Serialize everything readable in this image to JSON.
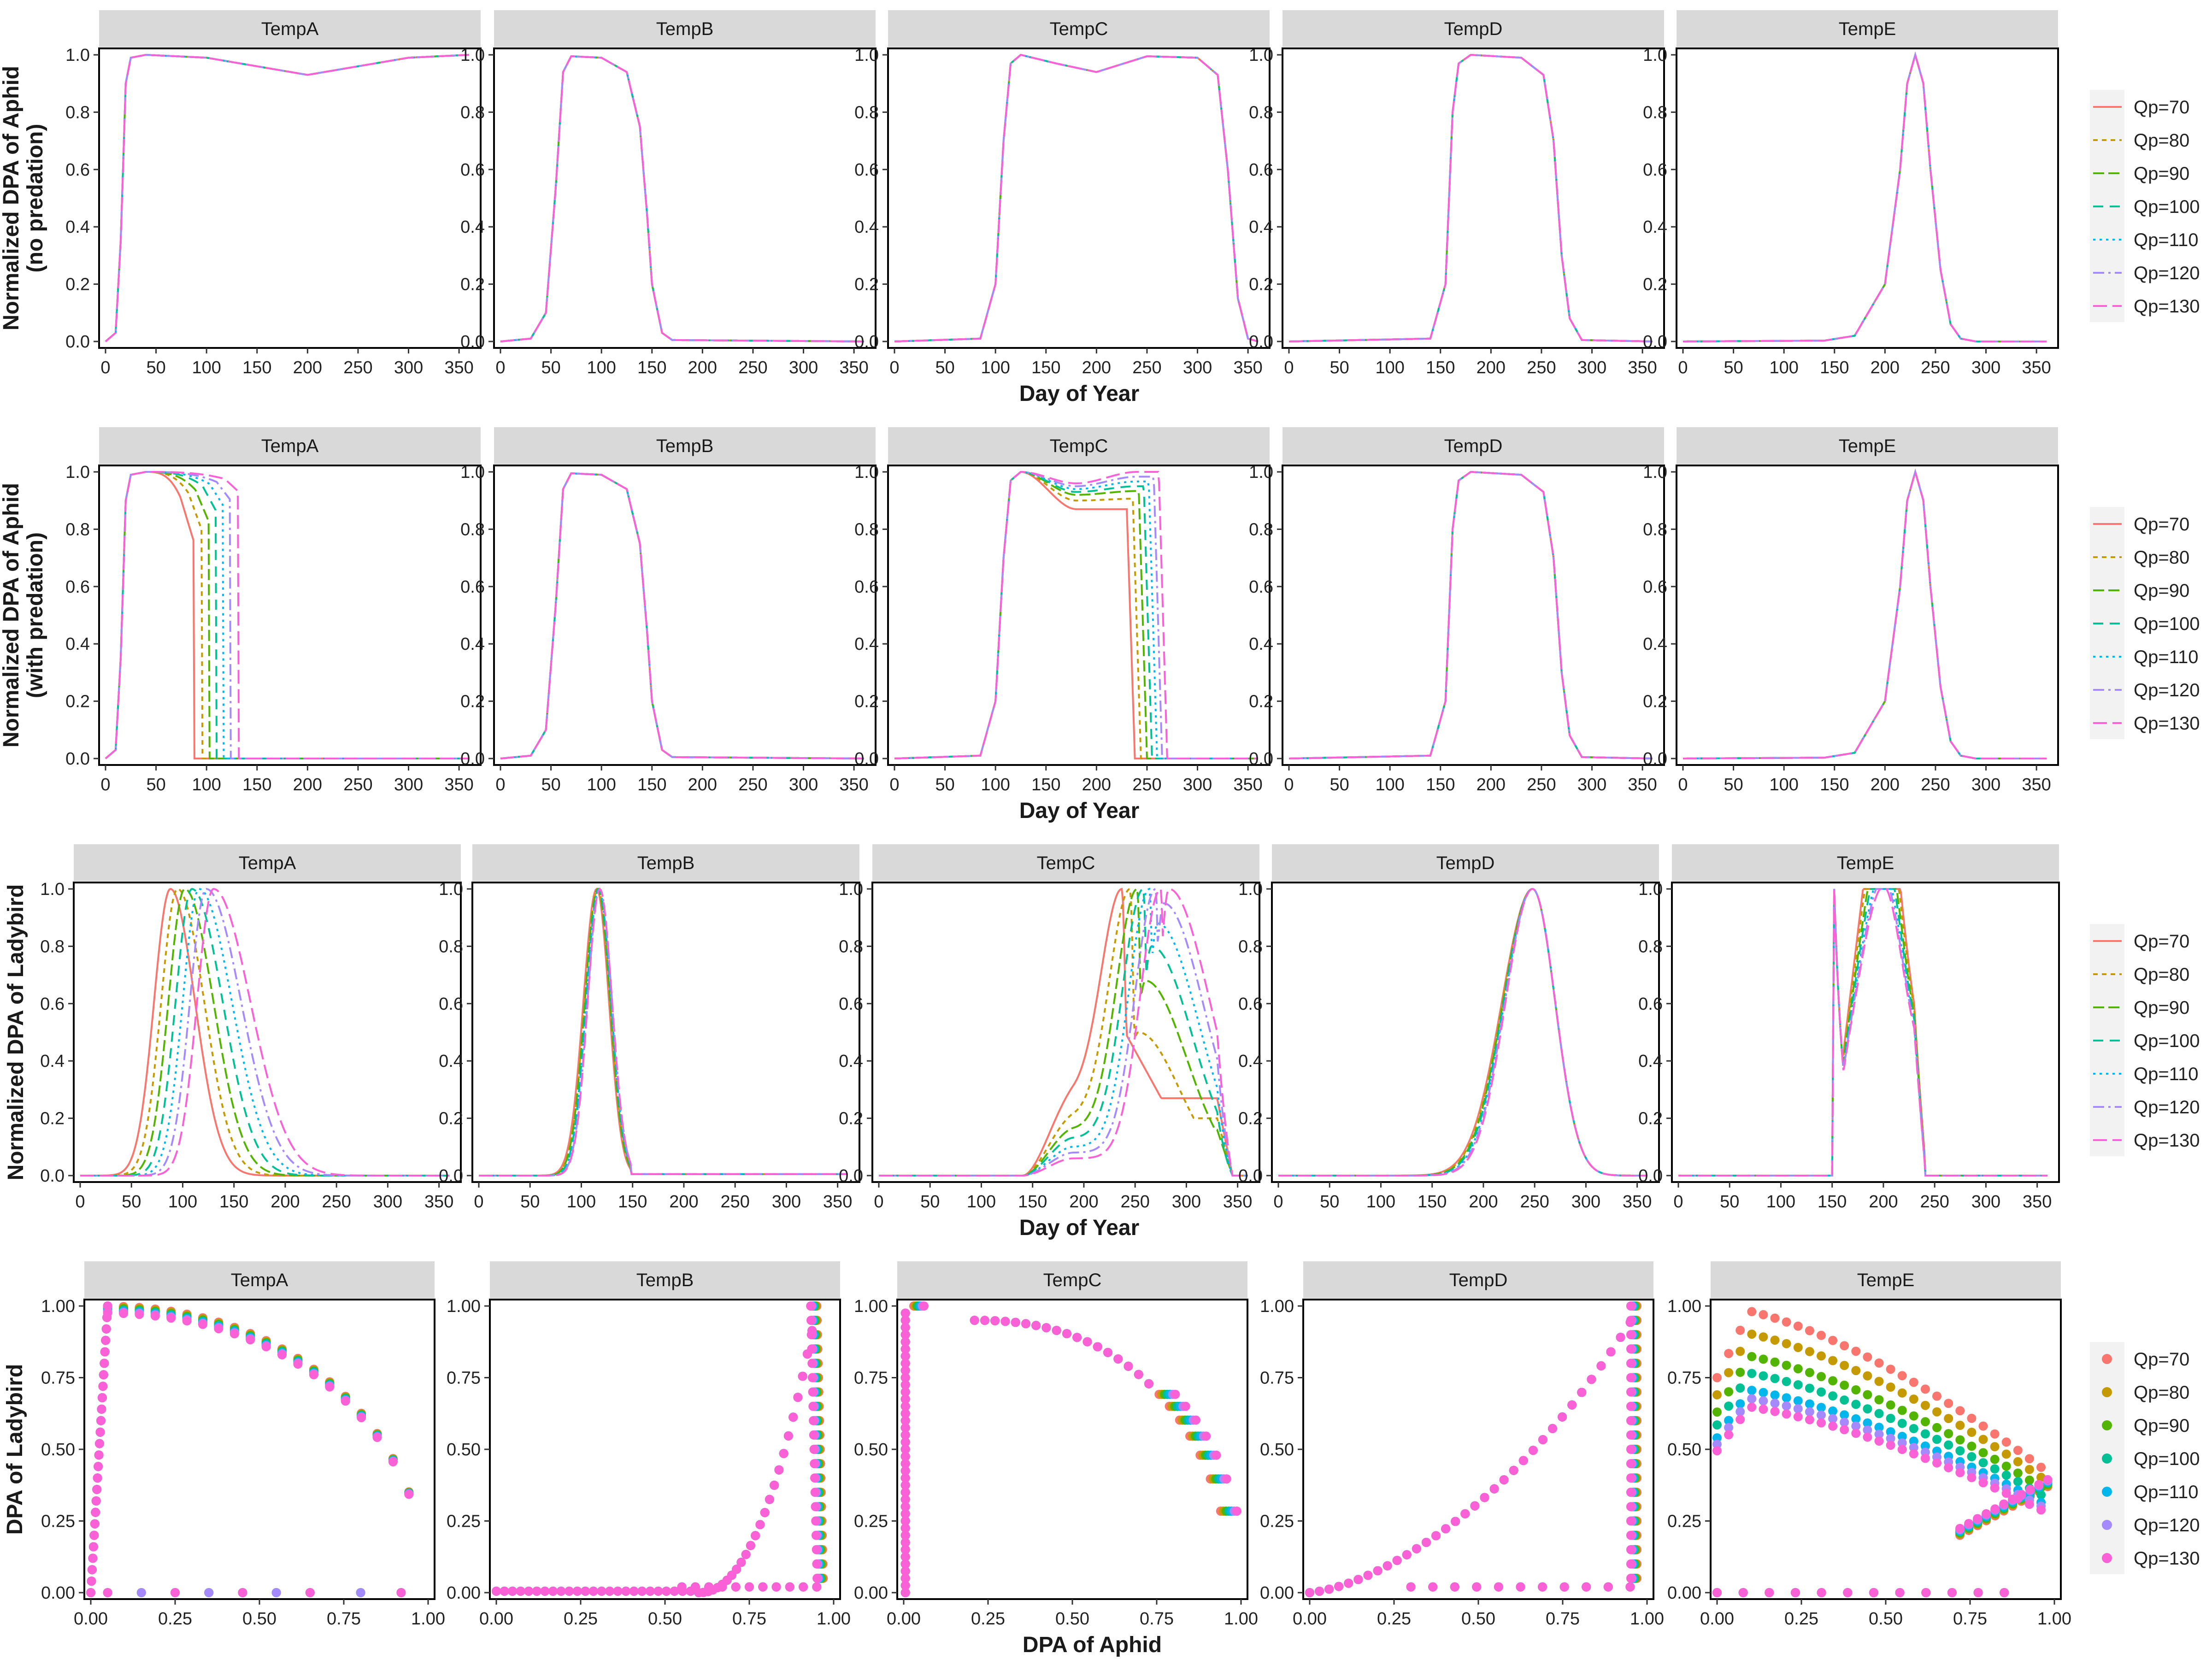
{
  "figure": {
    "legend_title": "",
    "series_names": [
      "Qp=70",
      "Qp=80",
      "Qp=90",
      "Qp=100",
      "Qp=110",
      "Qp=120",
      "Qp=130"
    ],
    "series_colors": [
      "#F8766D",
      "#C49A00",
      "#53B400",
      "#00C094",
      "#00B6EB",
      "#A58AFF",
      "#FB61D7"
    ],
    "panel_strip_color": "#D9D9D9"
  },
  "chart_data": [
    {
      "type": "line",
      "row": 1,
      "ylabel": [
        "Normalized DPA of Aphid",
        "(no predation)"
      ],
      "xlabel": "Day of Year",
      "xlim": [
        0,
        365
      ],
      "ylim": [
        0,
        1
      ],
      "xticks": [
        "0",
        "50",
        "100",
        "150",
        "200",
        "250",
        "300",
        "350"
      ],
      "yticks": [
        "0.0",
        "0.2",
        "0.4",
        "0.6",
        "0.8",
        "1.0"
      ],
      "panels": [
        "TempA",
        "TempB",
        "TempC",
        "TempD",
        "TempE"
      ],
      "note": "all Qp series overlap in every panel",
      "curves": {
        "TempA": [
          [
            0,
            0
          ],
          [
            10,
            0.03
          ],
          [
            15,
            0.35
          ],
          [
            20,
            0.9
          ],
          [
            25,
            0.99
          ],
          [
            40,
            1.0
          ],
          [
            100,
            0.99
          ],
          [
            150,
            0.96
          ],
          [
            200,
            0.93
          ],
          [
            250,
            0.96
          ],
          [
            300,
            0.99
          ],
          [
            360,
            1.0
          ]
        ],
        "TempB": [
          [
            0,
            0
          ],
          [
            30,
            0.01
          ],
          [
            45,
            0.1
          ],
          [
            55,
            0.55
          ],
          [
            62,
            0.94
          ],
          [
            70,
            0.995
          ],
          [
            100,
            0.99
          ],
          [
            125,
            0.94
          ],
          [
            138,
            0.75
          ],
          [
            145,
            0.45
          ],
          [
            150,
            0.2
          ],
          [
            160,
            0.03
          ],
          [
            170,
            0.005
          ],
          [
            360,
            0
          ]
        ],
        "TempC": [
          [
            0,
            0
          ],
          [
            85,
            0.01
          ],
          [
            100,
            0.2
          ],
          [
            108,
            0.7
          ],
          [
            115,
            0.97
          ],
          [
            125,
            1.0
          ],
          [
            160,
            0.97
          ],
          [
            200,
            0.94
          ],
          [
            250,
            0.995
          ],
          [
            300,
            0.99
          ],
          [
            320,
            0.93
          ],
          [
            330,
            0.6
          ],
          [
            340,
            0.15
          ],
          [
            350,
            0.01
          ],
          [
            360,
            0
          ]
        ],
        "TempD": [
          [
            0,
            0
          ],
          [
            140,
            0.01
          ],
          [
            155,
            0.2
          ],
          [
            162,
            0.8
          ],
          [
            168,
            0.97
          ],
          [
            180,
            1.0
          ],
          [
            230,
            0.99
          ],
          [
            252,
            0.93
          ],
          [
            262,
            0.7
          ],
          [
            270,
            0.3
          ],
          [
            278,
            0.08
          ],
          [
            290,
            0.005
          ],
          [
            360,
            0
          ]
        ],
        "TempE": [
          [
            0,
            0
          ],
          [
            140,
            0.003
          ],
          [
            170,
            0.02
          ],
          [
            200,
            0.2
          ],
          [
            215,
            0.6
          ],
          [
            222,
            0.9
          ],
          [
            230,
            1.0
          ],
          [
            238,
            0.9
          ],
          [
            245,
            0.6
          ],
          [
            255,
            0.25
          ],
          [
            265,
            0.06
          ],
          [
            275,
            0.01
          ],
          [
            290,
            0
          ],
          [
            360,
            0
          ]
        ]
      }
    },
    {
      "type": "line",
      "row": 2,
      "ylabel": [
        "Normalized DPA of Aphid",
        "(with predation)"
      ],
      "xlabel": "Day of Year",
      "xlim": [
        0,
        365
      ],
      "ylim": [
        0,
        1
      ],
      "xticks": [
        "0",
        "50",
        "100",
        "150",
        "200",
        "250",
        "300",
        "350"
      ],
      "yticks": [
        "0.0",
        "0.2",
        "0.4",
        "0.6",
        "0.8",
        "1.0"
      ],
      "panels": [
        "TempA",
        "TempB",
        "TempC",
        "TempD",
        "TempE"
      ],
      "curves": {
        "TempA": [
          [
            0,
            0
          ],
          [
            10,
            0.03
          ],
          [
            15,
            0.35
          ],
          [
            20,
            0.9
          ],
          [
            25,
            0.99
          ],
          [
            40,
            1.0
          ]
        ],
        "TempA_drop_day": [
          88,
          96,
          103,
          110,
          117,
          124,
          132
        ],
        "TempA_drop_value": [
          0.75,
          0.79,
          0.82,
          0.86,
          0.88,
          0.9,
          0.93
        ],
        "TempB": [
          [
            0,
            0
          ],
          [
            30,
            0.01
          ],
          [
            45,
            0.1
          ],
          [
            55,
            0.55
          ],
          [
            62,
            0.94
          ],
          [
            70,
            0.995
          ],
          [
            100,
            0.99
          ],
          [
            125,
            0.94
          ],
          [
            138,
            0.75
          ],
          [
            145,
            0.45
          ],
          [
            150,
            0.2
          ],
          [
            160,
            0.03
          ],
          [
            170,
            0.005
          ],
          [
            360,
            0
          ]
        ],
        "TempC_rise": [
          [
            0,
            0
          ],
          [
            85,
            0.01
          ],
          [
            100,
            0.2
          ],
          [
            108,
            0.7
          ],
          [
            115,
            0.97
          ],
          [
            125,
            1.0
          ]
        ],
        "TempC_plateau": [
          0.87,
          0.9,
          0.92,
          0.93,
          0.94,
          0.95,
          0.96
        ],
        "TempC_drop_day": [
          238,
          244,
          250,
          255,
          260,
          265,
          270
        ],
        "TempD": [
          [
            0,
            0
          ],
          [
            140,
            0.01
          ],
          [
            155,
            0.2
          ],
          [
            162,
            0.8
          ],
          [
            168,
            0.97
          ],
          [
            180,
            1.0
          ],
          [
            230,
            0.99
          ],
          [
            252,
            0.93
          ],
          [
            262,
            0.7
          ],
          [
            270,
            0.3
          ],
          [
            278,
            0.08
          ],
          [
            290,
            0.005
          ],
          [
            360,
            0
          ]
        ],
        "TempE": [
          [
            0,
            0
          ],
          [
            140,
            0.003
          ],
          [
            170,
            0.02
          ],
          [
            200,
            0.2
          ],
          [
            215,
            0.6
          ],
          [
            222,
            0.9
          ],
          [
            230,
            1.0
          ],
          [
            238,
            0.9
          ],
          [
            245,
            0.6
          ],
          [
            255,
            0.25
          ],
          [
            265,
            0.06
          ],
          [
            275,
            0.01
          ],
          [
            290,
            0
          ],
          [
            360,
            0
          ]
        ]
      }
    },
    {
      "type": "line",
      "row": 3,
      "ylabel": [
        "Normalized DPA of Ladybird"
      ],
      "xlabel": "Day of Year",
      "xlim": [
        0,
        365
      ],
      "ylim": [
        0,
        1
      ],
      "xticks": [
        "0",
        "50",
        "100",
        "150",
        "200",
        "250",
        "300",
        "350"
      ],
      "yticks": [
        "0.0",
        "0.2",
        "0.4",
        "0.6",
        "0.8",
        "1.0"
      ],
      "panels": [
        "TempA",
        "TempB",
        "TempC",
        "TempD",
        "TempE"
      ],
      "curves": {
        "TempA_peak_day": [
          88,
          95,
          102,
          109,
          116,
          123,
          130
        ],
        "TempB_peak_day": [
          115,
          116,
          116,
          117,
          117,
          118,
          118
        ],
        "TempC_peak_day": [
          237,
          245,
          252,
          258,
          264,
          270,
          275
        ],
        "TempC_shoulder": [
          0.27,
          0.2,
          0.16,
          0.13,
          0.1,
          0.08,
          0.06
        ],
        "TempC_late": [
          0.25,
          0.5,
          0.68,
          0.8,
          0.88,
          0.95,
          1.0
        ],
        "TempD_peak_day": [
          248,
          248,
          248,
          248,
          248,
          248,
          248
        ],
        "TempE_second_peak": [
          1.0,
          0.93,
          0.84,
          0.78,
          0.72,
          0.69,
          0.66
        ]
      }
    },
    {
      "type": "scatter",
      "row": 4,
      "ylabel": [
        "DPA of Ladybird"
      ],
      "xlabel": "DPA of Aphid",
      "xlim": [
        0,
        1
      ],
      "ylim": [
        0,
        1
      ],
      "xticks": [
        "0.00",
        "0.25",
        "0.50",
        "0.75",
        "1.00"
      ],
      "yticks": [
        "0.00",
        "0.25",
        "0.50",
        "0.75",
        "1.00"
      ],
      "panels": [
        "TempA",
        "TempB",
        "TempC",
        "TempD",
        "TempE"
      ],
      "curves": {
        "TempA": [
          [
            0.02,
            1.0
          ],
          [
            0.1,
            1.0
          ],
          [
            0.3,
            0.96
          ],
          [
            0.5,
            0.88
          ],
          [
            0.7,
            0.72
          ],
          [
            0.85,
            0.5
          ],
          [
            0.93,
            0.28
          ],
          [
            0.97,
            0.1
          ],
          [
            0.99,
            0.0
          ]
        ],
        "TempB": [
          [
            0,
            0.005
          ],
          [
            0.3,
            0.01
          ],
          [
            0.55,
            0.05
          ],
          [
            0.7,
            0.2
          ],
          [
            0.8,
            0.38
          ],
          [
            0.88,
            0.6
          ],
          [
            0.93,
            0.85
          ],
          [
            0.95,
            1.0
          ],
          [
            0.97,
            0.95
          ],
          [
            0.97,
            0.2
          ],
          [
            0.96,
            0.0
          ]
        ],
        "TempC": [
          [
            0.21,
            0.95
          ],
          [
            0.4,
            0.89
          ],
          [
            0.6,
            0.76
          ],
          [
            0.75,
            0.6
          ],
          [
            0.85,
            0.4
          ],
          [
            0.9,
            0.2
          ],
          [
            0.94,
            0.05
          ],
          [
            0.97,
            0.0
          ]
        ],
        "TempD": [
          [
            0,
            0.005
          ],
          [
            0.2,
            0.03
          ],
          [
            0.35,
            0.1
          ],
          [
            0.5,
            0.32
          ],
          [
            0.65,
            0.45
          ],
          [
            0.8,
            0.68
          ],
          [
            0.9,
            0.88
          ],
          [
            0.96,
            1.0
          ],
          [
            0.98,
            0.9
          ],
          [
            0.98,
            0.3
          ],
          [
            0.97,
            0.0
          ]
        ],
        "TempE_peak": [
          1.0,
          0.92,
          0.84,
          0.78,
          0.72,
          0.69,
          0.66
        ]
      }
    }
  ]
}
